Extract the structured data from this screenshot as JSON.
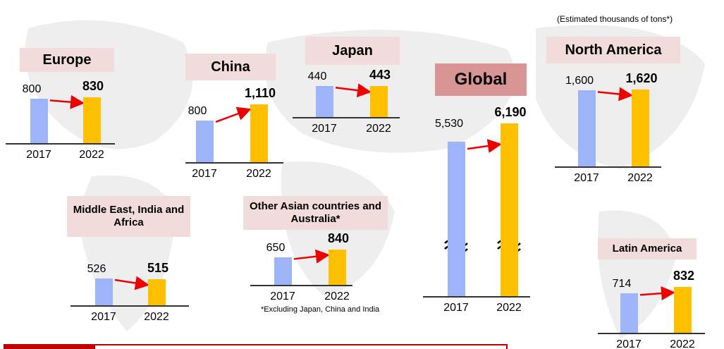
{
  "note": "(Estimated thousands of tons*)",
  "footnote": "*Excluding Japan, China and India",
  "chart_data": [
    {
      "type": "bar",
      "title": "Europe",
      "categories": [
        "2017",
        "2022"
      ],
      "values": [
        800,
        830
      ],
      "colors": [
        "#9db4f8",
        "#ffc000"
      ]
    },
    {
      "type": "bar",
      "title": "China",
      "categories": [
        "2017",
        "2022"
      ],
      "values": [
        800,
        1110
      ],
      "value_labels": [
        "800",
        "1,110"
      ],
      "colors": [
        "#9db4f8",
        "#ffc000"
      ]
    },
    {
      "type": "bar",
      "title": "Japan",
      "categories": [
        "2017",
        "2022"
      ],
      "values": [
        440,
        443
      ],
      "colors": [
        "#9db4f8",
        "#ffc000"
      ]
    },
    {
      "type": "bar",
      "title": "Global",
      "categories": [
        "2017",
        "2022"
      ],
      "values": [
        5530,
        6190
      ],
      "value_labels": [
        "5,530",
        "6,190"
      ],
      "colors": [
        "#9db4f8",
        "#ffc000"
      ]
    },
    {
      "type": "bar",
      "title": "North America",
      "categories": [
        "2017",
        "2022"
      ],
      "values": [
        1600,
        1620
      ],
      "value_labels": [
        "1,600",
        "1,620"
      ],
      "colors": [
        "#9db4f8",
        "#ffc000"
      ]
    },
    {
      "type": "bar",
      "title": "Middle East, India and Africa",
      "categories": [
        "2017",
        "2022"
      ],
      "values": [
        526,
        515
      ],
      "colors": [
        "#9db4f8",
        "#ffc000"
      ]
    },
    {
      "type": "bar",
      "title": "Other Asian countries and Australia*",
      "categories": [
        "2017",
        "2022"
      ],
      "values": [
        650,
        840
      ],
      "colors": [
        "#9db4f8",
        "#ffc000"
      ]
    },
    {
      "type": "bar",
      "title": "Latin America",
      "categories": [
        "2017",
        "2022"
      ],
      "values": [
        714,
        832
      ],
      "colors": [
        "#9db4f8",
        "#ffc000"
      ]
    }
  ]
}
